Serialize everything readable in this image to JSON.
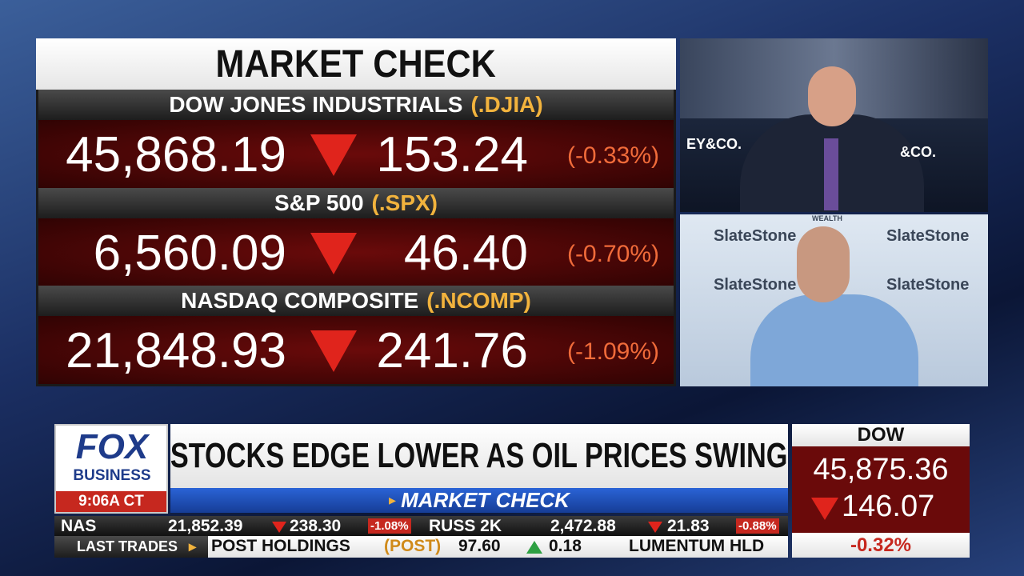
{
  "panel": {
    "title": "MARKET CHECK",
    "indices": [
      {
        "name": "DOW JONES INDUSTRIALS",
        "symbol": "(.DJIA)",
        "value": "45,868.19",
        "change": "153.24",
        "percent": "(-0.33%)"
      },
      {
        "name": "S&P 500",
        "symbol": "(.SPX)",
        "value": "6,560.09",
        "change": "46.40",
        "percent": "(-0.70%)"
      },
      {
        "name": "NASDAQ COMPOSITE",
        "symbol": "(.NCOMP)",
        "value": "21,848.93",
        "change": "241.76",
        "percent": "(-1.09%)"
      }
    ]
  },
  "video": {
    "backdrop_text": [
      "EY&CO.",
      "&CO."
    ],
    "guest_backdrop": [
      "SlateStone",
      "WEALTH"
    ]
  },
  "lower_third": {
    "logo": {
      "top": "FOX",
      "bottom": "BUSINESS",
      "time": "9:06A CT"
    },
    "headline": "STOCKS EDGE LOWER AS OIL PRICES SWING",
    "subhead": "MARKET CHECK",
    "dow": {
      "label": "DOW",
      "value": "45,875.36",
      "change": "146.07",
      "percent": "-0.32%"
    },
    "ticker_indices": [
      {
        "name": "NAS",
        "value": "21,852.39",
        "change": "238.30",
        "percent": "-1.08%"
      },
      {
        "name": "RUSS 2K",
        "value": "2,472.88",
        "change": "21.83",
        "percent": "-0.88%"
      }
    ],
    "last_trades": {
      "label": "LAST TRADES",
      "items": [
        {
          "name": "POST HOLDINGS",
          "symbol": "(POST)",
          "price": "97.60",
          "change": "0.18"
        }
      ],
      "next": "LUMENTUM HLD"
    }
  }
}
